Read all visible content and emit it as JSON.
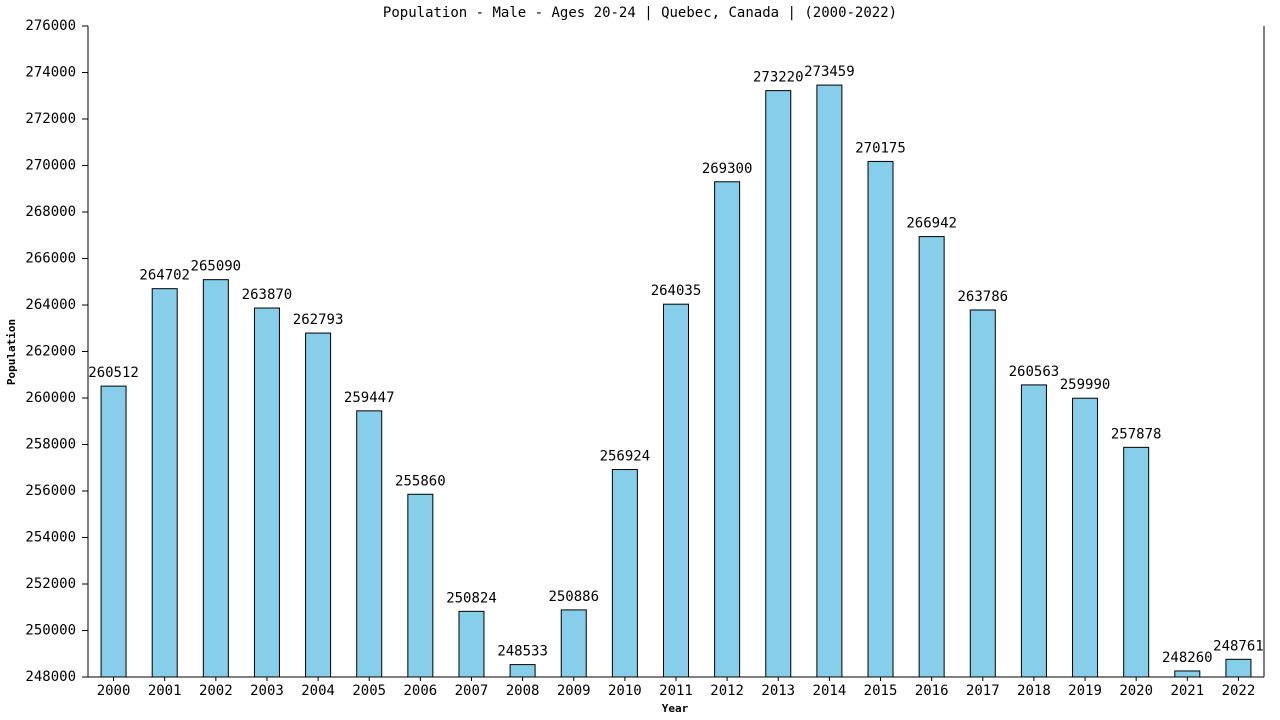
{
  "chart_data": {
    "type": "bar",
    "title": "Population - Male - Ages 20-24 | Quebec, Canada |  (2000-2022)",
    "x_label": "Year",
    "y_label": "Population",
    "categories": [
      "2000",
      "2001",
      "2002",
      "2003",
      "2004",
      "2005",
      "2006",
      "2007",
      "2008",
      "2009",
      "2010",
      "2011",
      "2012",
      "2013",
      "2014",
      "2015",
      "2016",
      "2017",
      "2018",
      "2019",
      "2020",
      "2021",
      "2022"
    ],
    "values": [
      260512,
      264702,
      265090,
      263870,
      262793,
      259447,
      255860,
      250824,
      248533,
      250886,
      256924,
      264035,
      269300,
      273220,
      273459,
      270175,
      266942,
      263786,
      260563,
      259990,
      257878,
      248260,
      248761
    ],
    "color": "#87ceeb",
    "ylim": [
      248000,
      276000
    ],
    "yticks": [
      248000,
      250000,
      252000,
      254000,
      256000,
      258000,
      260000,
      262000,
      264000,
      266000,
      268000,
      270000,
      272000,
      274000,
      276000
    ],
    "grid": false
  }
}
